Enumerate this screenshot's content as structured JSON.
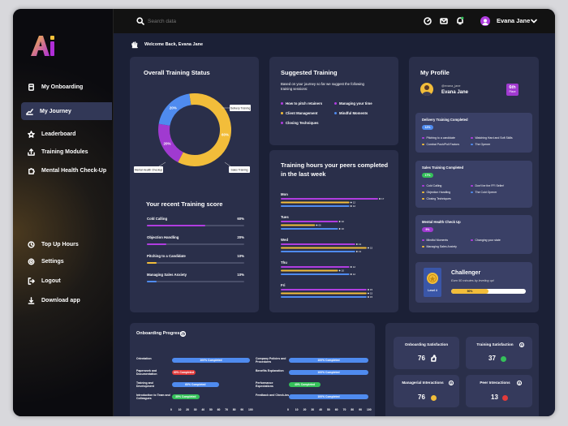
{
  "search": {
    "placeholder": "Search data"
  },
  "user": {
    "name": "Evana Jane",
    "handle": "@evana_jane"
  },
  "welcome": "Welcome Back, Evana Jane",
  "nav": {
    "items": [
      {
        "label": "My Onboarding"
      },
      {
        "label": "My Journey"
      },
      {
        "label": "Leaderboard"
      },
      {
        "label": "Training Modules"
      },
      {
        "label": "Mental Health Check-Up"
      }
    ],
    "bottom": [
      {
        "label": "Top Up Hours"
      },
      {
        "label": "Settings"
      },
      {
        "label": "Logout"
      },
      {
        "label": "Download app"
      }
    ]
  },
  "overall": {
    "title": "Overall Training Status",
    "labels": {
      "delivery": "Delivery Training",
      "mh": "Mental Health Checkup",
      "sales": "Sales Training"
    },
    "segments": [
      {
        "name": "Delivery Training",
        "pct": 60,
        "label": "60%",
        "color": "#f2bd3a"
      },
      {
        "name": "Sales Training",
        "pct": 20,
        "label": "20%",
        "color": "#a03ad0"
      },
      {
        "name": "Mental Health Checkup",
        "pct": 20,
        "label": "20%",
        "color": "#4f8bef"
      }
    ]
  },
  "recent": {
    "title": "Your recent Training score",
    "items": [
      {
        "label": "Cold Calling",
        "value": "60%",
        "pct": 60,
        "color": "#b03de0"
      },
      {
        "label": "Objection Handling",
        "value": "20%",
        "pct": 20,
        "color": "#b03de0"
      },
      {
        "label": "Pitching to a Candidate",
        "value": "10%",
        "pct": 10,
        "color": "#f2bd3a"
      },
      {
        "label": "Managing Sales Anxiety",
        "value": "10%",
        "pct": 10,
        "color": "#4f8bef"
      }
    ]
  },
  "suggested": {
    "title": "Suggested Training",
    "intro": "Based on your journey so far we suggest the following training sessions:",
    "items": [
      {
        "label": "How to pitch retainers",
        "color": "#b03de0"
      },
      {
        "label": "Managing your time",
        "color": "#b03de0"
      },
      {
        "label": "Client Management",
        "color": "#f2bd3a"
      },
      {
        "label": "Mindful Moments",
        "color": "#4f8bef"
      },
      {
        "label": "Closing Techniques",
        "color": "#b03de0"
      }
    ]
  },
  "peers": {
    "title": "Training hours your peers completed in the last week",
    "days": [
      {
        "day": "Mon",
        "bars": [
          {
            "v": 17,
            "label": "17",
            "color": "#b03de0"
          },
          {
            "v": 12,
            "label": "12",
            "color": "#f2bd3a"
          },
          {
            "v": 12,
            "label": "12",
            "color": "#4f8bef"
          }
        ]
      },
      {
        "day": "Tues",
        "bars": [
          {
            "v": 10,
            "label": "10",
            "color": "#b03de0"
          },
          {
            "v": 6,
            "label": "06",
            "color": "#f2bd3a"
          },
          {
            "v": 10,
            "label": "10",
            "color": "#4f8bef"
          }
        ]
      },
      {
        "day": "Wed",
        "bars": [
          {
            "v": 13,
            "label": "13",
            "color": "#b03de0"
          },
          {
            "v": 15,
            "label": "15",
            "color": "#f2bd3a"
          },
          {
            "v": 13,
            "label": "13",
            "color": "#4f8bef"
          }
        ]
      },
      {
        "day": "Thu",
        "bars": [
          {
            "v": 12,
            "label": "12",
            "color": "#b03de0"
          },
          {
            "v": 10,
            "label": "10",
            "color": "#f2bd3a"
          },
          {
            "v": 12,
            "label": "12",
            "color": "#4f8bef"
          }
        ]
      },
      {
        "day": "Fri",
        "bars": [
          {
            "v": 15,
            "label": "15",
            "color": "#b03de0"
          },
          {
            "v": 15,
            "label": "15",
            "color": "#f2bd3a"
          },
          {
            "v": 15,
            "label": "15",
            "color": "#4f8bef"
          }
        ]
      }
    ]
  },
  "profile": {
    "title": "My Profile",
    "rank": "6th",
    "rank_sub": "Place",
    "delivery": {
      "title": "Delivery Training Completed",
      "badge": "12%",
      "items": [
        {
          "label": "Pitching to a candidate",
          "color": "#b03de0"
        },
        {
          "label": "Watching Hard and Soft Skills",
          "color": "#b03de0"
        },
        {
          "label": "Combat Push/Pull Factors",
          "color": "#f2bd3a"
        },
        {
          "label": "The Opener",
          "color": "#4f8bef"
        }
      ]
    },
    "sales": {
      "title": "Sales Training Completed",
      "badge": "17%",
      "items": [
        {
          "label": "Cold Calling",
          "color": "#b03de0"
        },
        {
          "label": "Don't be the FFI Seller!",
          "color": "#b03de0"
        },
        {
          "label": "Objection Handling",
          "color": "#f2bd3a"
        },
        {
          "label": "The Cold Opener",
          "color": "#4f8bef"
        },
        {
          "label": "Closing Techniques",
          "color": "#f2bd3a"
        }
      ]
    },
    "mental": {
      "title": "Mental Health Check Up",
      "badge": "9%",
      "items": [
        {
          "label": "Mindful Moments",
          "color": "#b03de0"
        },
        {
          "label": "Changing your state",
          "color": "#b03de0"
        },
        {
          "label": "Managing Sales Anxiety",
          "color": "#f2bd3a"
        }
      ]
    },
    "challenger": {
      "title": "Challenger",
      "sub": "Earn 50 minutes by leveling up!",
      "level": "Level 4",
      "progress": 50,
      "progress_label": "50%"
    }
  },
  "onboarding": {
    "title": "Onboarding Progress",
    "ticks": [
      "0",
      "10",
      "20",
      "30",
      "40",
      "50",
      "60",
      "70",
      "80",
      "90",
      "100"
    ],
    "left": [
      {
        "label": "Orientation",
        "pct": 100,
        "status": "100% Completed",
        "color": "#4f8bef"
      },
      {
        "label": "Paperwork and Documentation",
        "pct": 30,
        "status": "30% Completed",
        "color": "#e23b3b"
      },
      {
        "label": "Training and Development",
        "pct": 60,
        "status": "60% Completed",
        "color": "#4f8bef"
      },
      {
        "label": "Introduction to Team and Colleagues",
        "pct": 35,
        "status": "35% Completed",
        "color": "#35c05a"
      }
    ],
    "right": [
      {
        "label": "Company Policies and Procedures",
        "pct": 100,
        "status": "100% Completed",
        "color": "#4f8bef"
      },
      {
        "label": "Benefits Explanation",
        "pct": 100,
        "status": "100% Completed",
        "color": "#4f8bef"
      },
      {
        "label": "Performance Expectations",
        "pct": 40,
        "status": "40% Completed",
        "color": "#35c05a"
      },
      {
        "label": "Feedback and Check-ins",
        "pct": 100,
        "status": "100% Completed",
        "color": "#4f8bef"
      }
    ]
  },
  "stats": [
    {
      "title": "Onboarding Satisfaction",
      "value": "76"
    },
    {
      "title": "Training Satisfaction",
      "value": "37"
    },
    {
      "title": "Managerial Interactions",
      "value": "76"
    },
    {
      "title": "Peer Interactions",
      "value": "13"
    }
  ]
}
